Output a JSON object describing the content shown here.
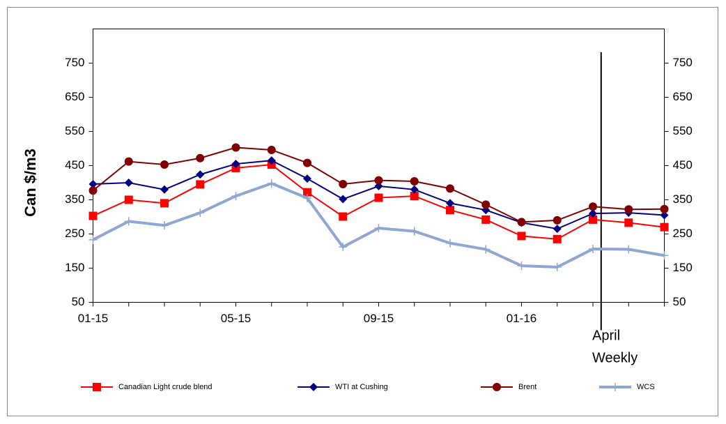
{
  "chart_data": {
    "type": "line",
    "y_label": "Can $/m3",
    "categories": [
      "01-15",
      null,
      null,
      null,
      "05-15",
      null,
      null,
      null,
      "09-15",
      null,
      null,
      null,
      "01-16",
      null,
      null,
      null,
      null
    ],
    "annotation": [
      "April",
      "Weekly"
    ],
    "ylim": [
      50,
      850
    ],
    "yticks": [
      50,
      150,
      250,
      350,
      450,
      550,
      650,
      750
    ],
    "y2lim": [
      50,
      850
    ],
    "y2ticks": [
      50,
      150,
      250,
      350,
      450,
      550,
      650,
      750
    ],
    "series": [
      {
        "name": "Canadian Light crude blend",
        "color": "#ff0000",
        "marker": "square",
        "values": [
          303,
          350,
          340,
          395,
          443,
          453,
          372,
          301,
          356,
          361,
          320,
          292,
          244,
          235,
          292,
          283,
          270
        ]
      },
      {
        "name": "WTI at Cushing",
        "color": "#000080",
        "marker": "diamond",
        "values": [
          396,
          400,
          380,
          424,
          455,
          465,
          412,
          352,
          390,
          380,
          340,
          320,
          283,
          265,
          310,
          312,
          305
        ]
      },
      {
        "name": "Brent",
        "color": "#800000",
        "marker": "circle",
        "values": [
          377,
          462,
          453,
          472,
          503,
          496,
          458,
          396,
          407,
          404,
          383,
          336,
          285,
          290,
          330,
          322,
          323
        ]
      },
      {
        "name": "WCS",
        "color": "#8ea6d0",
        "marker": "plus",
        "values": [
          233,
          287,
          275,
          312,
          361,
          398,
          355,
          212,
          267,
          258,
          223,
          205,
          157,
          153,
          206,
          205,
          187
        ]
      }
    ]
  }
}
